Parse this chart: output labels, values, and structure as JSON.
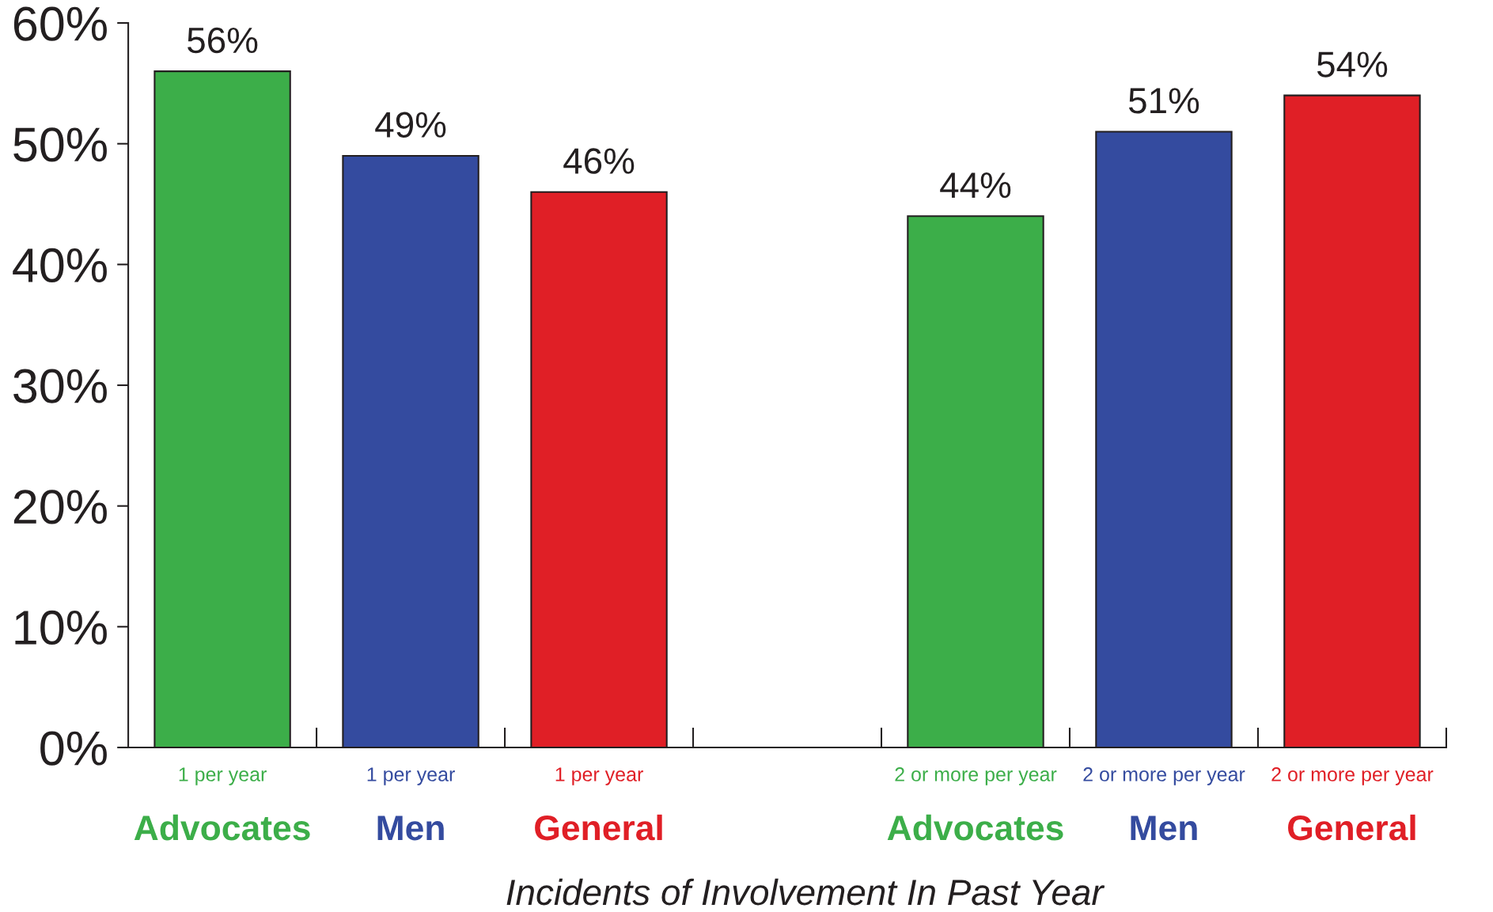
{
  "chart_data": {
    "type": "bar",
    "xlabel": "Incidents of Involvement In Past Year",
    "categories": [
      "1 per year\nAdvocates",
      "1 per year\nMen",
      "1 per year\nGeneral",
      null,
      "2 or more per year\nAdvocates",
      "2 or more per year\nMen",
      "2 or more per year\nGeneral"
    ],
    "values": [
      56,
      49,
      46,
      null,
      44,
      51,
      54
    ],
    "value_labels": [
      "56%",
      "49%",
      "46%",
      null,
      "44%",
      "51%",
      "54%"
    ],
    "colors": [
      "#3cae49",
      "#344b9f",
      "#e01f26",
      null,
      "#3cae49",
      "#344b9f",
      "#e01f26"
    ],
    "ylim": [
      0,
      60
    ],
    "yticks": [
      {
        "value": 0,
        "label": "0%"
      },
      {
        "value": 10,
        "label": "10%"
      },
      {
        "value": 20,
        "label": "20%"
      },
      {
        "value": 30,
        "label": "30%"
      },
      {
        "value": 40,
        "label": "40%"
      },
      {
        "value": 50,
        "label": "50%"
      },
      {
        "value": 60,
        "label": "60%"
      }
    ]
  }
}
